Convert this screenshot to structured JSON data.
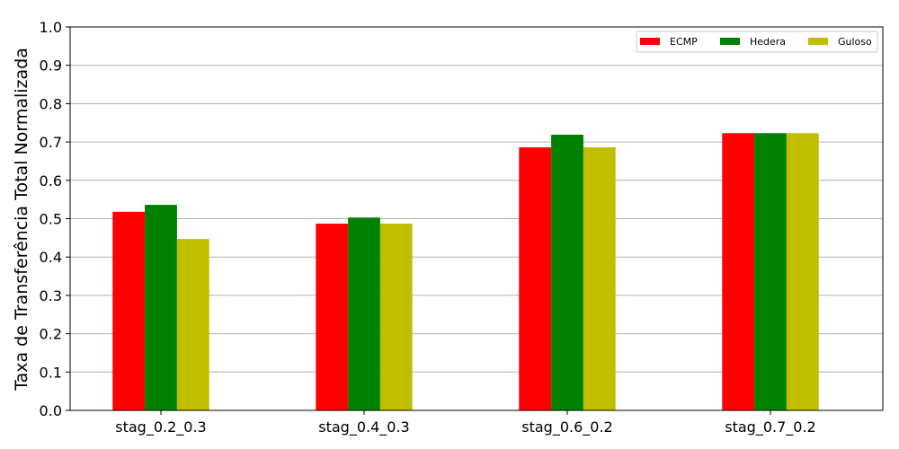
{
  "chart_data": {
    "type": "bar",
    "title": "",
    "xlabel": "",
    "ylabel": "Taxa de Transferência Total Normalizada",
    "ylim": [
      0,
      1.0
    ],
    "yticks": [
      "0.0",
      "0.1",
      "0.2",
      "0.3",
      "0.4",
      "0.5",
      "0.6",
      "0.7",
      "0.8",
      "0.9",
      "1.0"
    ],
    "grid": "horizontal",
    "legend_position": "top-right",
    "categories": [
      "stag_0.2_0.3",
      "stag_0.4_0.3",
      "stag_0.6_0.2",
      "stag_0.7_0.2"
    ],
    "series": [
      {
        "name": "ECMP",
        "color": "#ff0000",
        "values": [
          0.518,
          0.487,
          0.686,
          0.723
        ]
      },
      {
        "name": "Hedera",
        "color": "#008000",
        "values": [
          0.536,
          0.503,
          0.719,
          0.723
        ]
      },
      {
        "name": "Guloso",
        "color": "#bfbf00",
        "values": [
          0.447,
          0.487,
          0.686,
          0.723
        ]
      }
    ]
  }
}
